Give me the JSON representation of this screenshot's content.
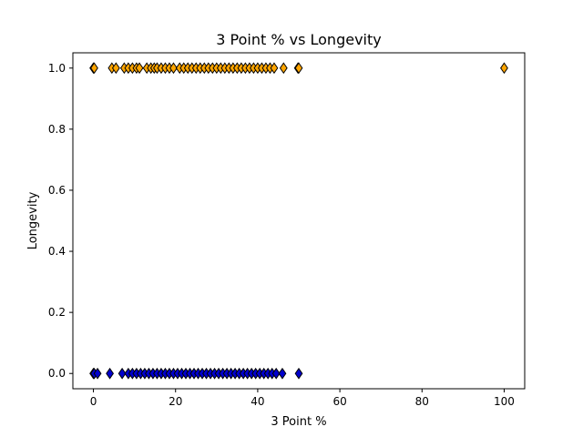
{
  "chart_data": {
    "type": "scatter",
    "title": "3 Point % vs Longevity",
    "xlabel": "3 Point %",
    "ylabel": "Longevity",
    "xlim": [
      -5,
      105
    ],
    "ylim": [
      -0.05,
      1.05
    ],
    "xticks": [
      0,
      20,
      40,
      60,
      80,
      100
    ],
    "xtick_labels": [
      "0",
      "20",
      "40",
      "60",
      "80",
      "100"
    ],
    "yticks": [
      0.0,
      0.2,
      0.4,
      0.6,
      0.8,
      1.0
    ],
    "ytick_labels": [
      "0.0",
      "0.2",
      "0.4",
      "0.6",
      "0.8",
      "1.0"
    ],
    "grid": false,
    "marker": "diamond",
    "series": [
      {
        "color": "#ffa500",
        "edgecolor": "#000000",
        "y": 1,
        "x": [
          0,
          0.2,
          4.5,
          5.5,
          7.5,
          8.5,
          9.5,
          10.5,
          11.2,
          13,
          14,
          14.8,
          15.5,
          16.5,
          17.5,
          18.5,
          19.5,
          21,
          22,
          23,
          24,
          25,
          26,
          27,
          28,
          29,
          30,
          31,
          32,
          33,
          34,
          35,
          36,
          37,
          38,
          39,
          40,
          41,
          42,
          43,
          44,
          46.3,
          49.8,
          50,
          100
        ]
      },
      {
        "color": "#0000cd",
        "edgecolor": "#000000",
        "y": 0,
        "x": [
          0,
          0.2,
          1,
          4,
          7,
          8.5,
          9.5,
          10.5,
          11.5,
          12.5,
          13.5,
          14.5,
          15.5,
          16.5,
          17.5,
          18.5,
          19.5,
          20.5,
          21.5,
          22.5,
          23.5,
          24.5,
          25.5,
          26.5,
          27.5,
          28.5,
          29.5,
          30.5,
          31.5,
          32.5,
          33.5,
          34.5,
          35.5,
          36.5,
          37.5,
          38.5,
          39.5,
          40.5,
          41.5,
          42.5,
          43.5,
          44.5,
          46,
          50
        ]
      }
    ]
  }
}
